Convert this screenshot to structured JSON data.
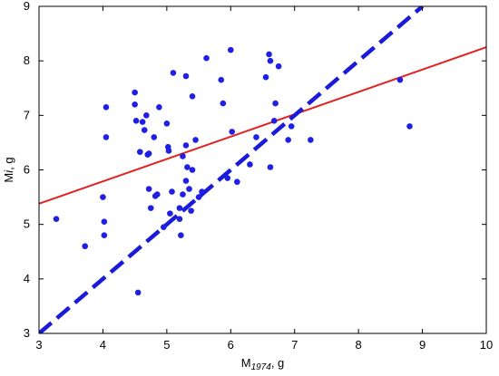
{
  "chart_data": {
    "type": "scatter",
    "title": "",
    "xlabel": {
      "main": "M",
      "sub": "1974",
      "unit": ", g"
    },
    "ylabel": {
      "main": "M",
      "italic": "i",
      "unit": ", g"
    },
    "xlim": [
      3,
      10
    ],
    "ylim": [
      3,
      9
    ],
    "xticks": [
      "3",
      "4",
      "5",
      "6",
      "7",
      "8",
      "9",
      "10"
    ],
    "yticks": [
      "3",
      "4",
      "5",
      "6",
      "7",
      "8",
      "9"
    ],
    "grid": false,
    "colors": {
      "points": "#1f1fe6",
      "regression": "#e32222",
      "identity": "#1a1ad9",
      "axis": "#000000"
    },
    "points": [
      [
        3.27,
        5.1
      ],
      [
        3.72,
        4.6
      ],
      [
        4.0,
        5.5
      ],
      [
        4.02,
        5.05
      ],
      [
        4.02,
        4.8
      ],
      [
        4.05,
        6.6
      ],
      [
        4.05,
        7.15
      ],
      [
        4.5,
        7.42
      ],
      [
        4.5,
        7.2
      ],
      [
        4.52,
        6.9
      ],
      [
        4.55,
        3.75
      ],
      [
        4.58,
        6.33
      ],
      [
        4.62,
        6.88
      ],
      [
        4.65,
        6.73
      ],
      [
        4.68,
        7.0
      ],
      [
        4.7,
        6.28
      ],
      [
        4.72,
        6.3
      ],
      [
        4.72,
        5.65
      ],
      [
        4.75,
        5.3
      ],
      [
        4.8,
        6.6
      ],
      [
        4.82,
        5.52
      ],
      [
        4.85,
        5.55
      ],
      [
        4.88,
        7.15
      ],
      [
        4.95,
        4.95
      ],
      [
        5.0,
        6.85
      ],
      [
        5.02,
        6.42
      ],
      [
        5.03,
        6.35
      ],
      [
        5.05,
        5.2
      ],
      [
        5.08,
        5.6
      ],
      [
        5.1,
        7.78
      ],
      [
        5.2,
        5.3
      ],
      [
        5.2,
        5.1
      ],
      [
        5.22,
        4.8
      ],
      [
        5.25,
        6.25
      ],
      [
        5.25,
        5.55
      ],
      [
        5.3,
        6.45
      ],
      [
        5.3,
        5.8
      ],
      [
        5.3,
        7.72
      ],
      [
        5.32,
        6.05
      ],
      [
        5.35,
        5.65
      ],
      [
        5.38,
        5.25
      ],
      [
        5.4,
        6.0
      ],
      [
        5.4,
        7.35
      ],
      [
        5.45,
        6.55
      ],
      [
        5.5,
        5.5
      ],
      [
        5.55,
        5.6
      ],
      [
        5.62,
        8.05
      ],
      [
        5.85,
        7.65
      ],
      [
        5.88,
        7.22
      ],
      [
        5.95,
        5.85
      ],
      [
        6.0,
        8.2
      ],
      [
        6.02,
        6.7
      ],
      [
        6.1,
        5.78
      ],
      [
        6.3,
        6.1
      ],
      [
        6.4,
        6.6
      ],
      [
        6.55,
        7.7
      ],
      [
        6.6,
        8.12
      ],
      [
        6.62,
        8.0
      ],
      [
        6.62,
        6.05
      ],
      [
        6.68,
        6.9
      ],
      [
        6.7,
        7.22
      ],
      [
        6.75,
        7.9
      ],
      [
        6.9,
        6.55
      ],
      [
        6.95,
        6.8
      ],
      [
        7.25,
        6.55
      ],
      [
        8.65,
        7.65
      ],
      [
        8.8,
        6.8
      ]
    ],
    "lines": [
      {
        "kind": "regression",
        "from": [
          3.0,
          5.38
        ],
        "to": [
          10.0,
          8.25
        ]
      },
      {
        "kind": "identity",
        "from": [
          3.0,
          3.0
        ],
        "to": [
          9.0,
          9.0
        ]
      }
    ]
  }
}
